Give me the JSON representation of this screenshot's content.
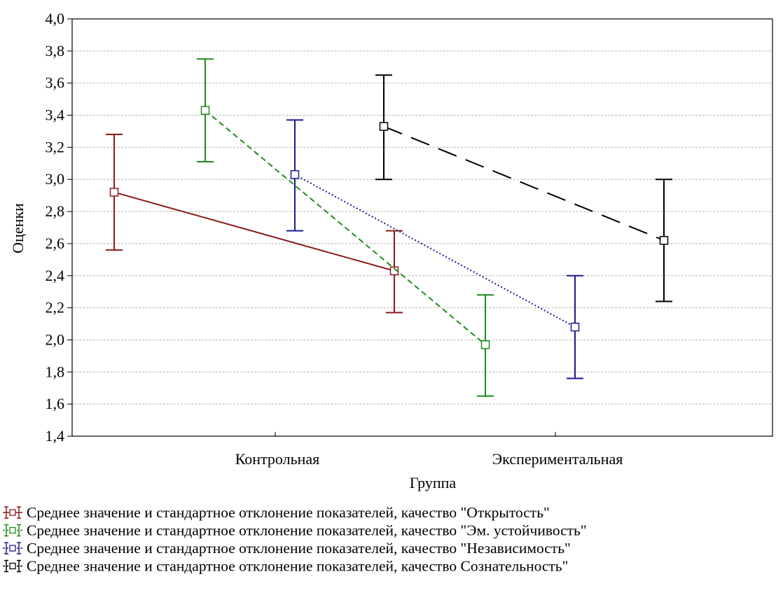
{
  "chart_data": {
    "type": "line",
    "title": "",
    "xlabel": "Группа",
    "ylabel": "Оценки",
    "categories": [
      "Контрольная",
      "Экспериментальная"
    ],
    "ylim": [
      1.4,
      4.0
    ],
    "yticks": [
      "1,4",
      "1,6",
      "1,8",
      "2,0",
      "2,2",
      "2,4",
      "2,6",
      "2,8",
      "3,0",
      "3,2",
      "3,4",
      "3,6",
      "3,8",
      "4,0"
    ],
    "grid": true,
    "legend_position": "bottom",
    "series": [
      {
        "name": "Среднее значение и стандартное отклонение показателей, качество \"Открытость\"",
        "color": "#8b1a1a",
        "line_style": "solid",
        "means": [
          2.92,
          2.43
        ],
        "lower": [
          2.56,
          2.17
        ],
        "upper": [
          3.28,
          2.68
        ]
      },
      {
        "name": "Среднее значение и стандартное отклонение показателей, качество \"Эм. устойчивость\"",
        "color": "#1e8c1e",
        "line_style": "dashed",
        "means": [
          3.43,
          1.97
        ],
        "lower": [
          3.11,
          1.65
        ],
        "upper": [
          3.75,
          2.28
        ]
      },
      {
        "name": "Среднее значение и стандартное отклонение показателей, качество \"Независимость\"",
        "color": "#1a1a8c",
        "line_style": "dotted",
        "means": [
          3.03,
          2.08
        ],
        "lower": [
          2.68,
          1.76
        ],
        "upper": [
          3.37,
          2.4
        ]
      },
      {
        "name": "Среднее значение и стандартное отклонение показателей, качество Сознательность\"",
        "color": "#000000",
        "line_style": "longdash",
        "means": [
          3.33,
          2.62
        ],
        "lower": [
          3.0,
          2.24
        ],
        "upper": [
          3.65,
          3.0
        ]
      }
    ]
  }
}
